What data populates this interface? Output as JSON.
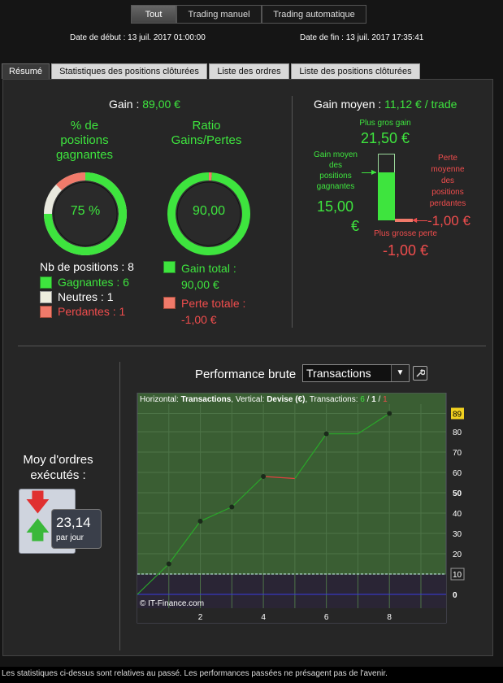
{
  "top_tabs": {
    "all": "Tout",
    "manual": "Trading manuel",
    "auto": "Trading automatique"
  },
  "dates": {
    "start": "Date de début :  13 juil. 2017 01:00:00",
    "end": "Date de fin :  13 juil. 2017 17:35:41"
  },
  "sub_tabs": [
    "Résumé",
    "Statistiques des positions clôturées",
    "Liste des ordres",
    "Liste des positions clôturées"
  ],
  "gain": {
    "label": "Gain : ",
    "value": "89,00 €"
  },
  "win_pct": {
    "title_l1": "% de",
    "title_l2": "positions",
    "title_l3": "gagnantes",
    "value": "75 %",
    "fraction": 0.75
  },
  "ratio": {
    "title_l1": "Ratio",
    "title_l2": "Gains/Pertes",
    "value": "90,00",
    "fraction": 0.989
  },
  "positions": {
    "count_label": "Nb de positions : 8",
    "winners": "Gagnantes : 6",
    "neutral": "Neutres : 1",
    "losers": "Perdantes : 1"
  },
  "totals": {
    "gain_l1": "Gain total :",
    "gain_l2": "90,00 €",
    "loss_l1": "Perte totale :",
    "loss_l2": "-1,00 €"
  },
  "avg_gain": {
    "label": "Gain moyen : ",
    "value": "11,12 € / trade",
    "best_label": "Plus gros gain",
    "best_value": "21,50 €",
    "avg_win_label": [
      "Gain moyen",
      "des",
      "positions",
      "gagnantes"
    ],
    "avg_win_value_l1": "15,00",
    "avg_win_value_l2": "€",
    "avg_loss_label": [
      "Perte",
      "moyenne",
      "des",
      "positions",
      "perdantes"
    ],
    "avg_loss_value": "-1,00 €",
    "worst_label": "Plus grosse perte",
    "worst_value": "-1,00 €"
  },
  "orders": {
    "title_l1": "Moy d'ordres",
    "title_l2": "exécutés :",
    "value": "23,14",
    "unit": "par jour"
  },
  "performance": {
    "label": "Performance brute",
    "select": "Transactions"
  },
  "colors": {
    "green": "#3ee43e",
    "red": "#f04d4d",
    "panel": "#262626",
    "plot_bg": "#3a5e33"
  },
  "chart_data": {
    "type": "line",
    "header_prefix": "Horizontal: ",
    "header_x": "Transactions",
    "header_mid": ", Vertical: ",
    "header_y": "Devise (€)",
    "header_tx": ", Transactions: ",
    "header_win": "6",
    "header_sep1": " / ",
    "header_neutral": "1",
    "header_sep2": " / ",
    "header_loss": "1",
    "watermark": "© IT-Finance.com",
    "x": [
      0,
      1,
      2,
      3,
      4,
      5,
      6,
      7,
      8
    ],
    "values": [
      0,
      15,
      36,
      43,
      58,
      57,
      79,
      79,
      89
    ],
    "segment_colors": [
      "green",
      "green",
      "green",
      "green",
      "red",
      "green",
      "green",
      "green"
    ],
    "xlim": [
      0,
      9.8
    ],
    "ylim": [
      -10,
      90
    ],
    "x_ticks": [
      2,
      4,
      6,
      8
    ],
    "y_ticks": [
      {
        "v": 0,
        "label": "0",
        "bold": true
      },
      {
        "v": 10,
        "label": "10",
        "box": true
      },
      {
        "v": 20,
        "label": "20"
      },
      {
        "v": 30,
        "label": "30"
      },
      {
        "v": 40,
        "label": "40"
      },
      {
        "v": 50,
        "label": "50",
        "bold": true
      },
      {
        "v": 60,
        "label": "60"
      },
      {
        "v": 70,
        "label": "70"
      },
      {
        "v": 80,
        "label": "80"
      },
      {
        "v": 89,
        "label": "89",
        "yellow": true
      }
    ],
    "baseline_threshold": 10,
    "grid": true
  }
}
